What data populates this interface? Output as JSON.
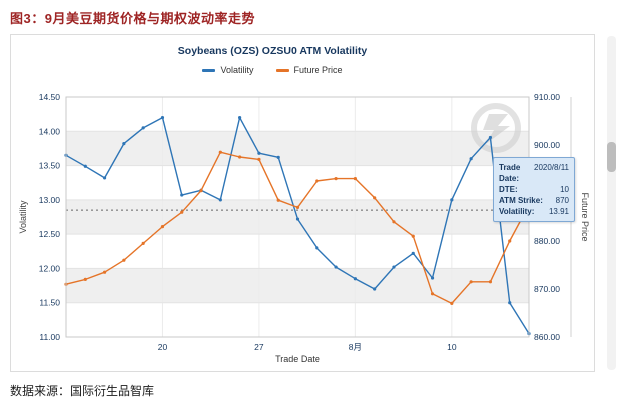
{
  "page": {
    "title": "图3：9月美豆期货价格与期权波动率走势",
    "source": "数据来源：国际衍生品智库"
  },
  "tooltip": {
    "rows": [
      {
        "label": "Trade Date:",
        "value": "2020/8/11"
      },
      {
        "label": "DTE:",
        "value": "10"
      },
      {
        "label": "ATM Strike:",
        "value": "870"
      },
      {
        "label": "Volatility:",
        "value": "13.91"
      }
    ]
  },
  "chart_data": {
    "type": "line",
    "title": "Soybeans (OZS) OZSU0 ATM Volatility",
    "x_label": "Trade Date",
    "x_ticks": [
      {
        "index": 5,
        "label": "20"
      },
      {
        "index": 10,
        "label": "27"
      },
      {
        "index": 15,
        "label": "8月"
      },
      {
        "index": 20,
        "label": "10"
      }
    ],
    "y_left": {
      "label": "Volatility",
      "min": 11.0,
      "max": 14.5,
      "tick_step": 0.5
    },
    "y_right": {
      "label": "Future Price",
      "min": 860,
      "max": 910,
      "tick_step": 10
    },
    "reference_line": {
      "axis": "left",
      "value": 12.85
    },
    "series": [
      {
        "name": "Volatility",
        "axis": "left",
        "color": "#2E75B6",
        "values": [
          13.65,
          13.49,
          13.32,
          13.82,
          14.05,
          14.2,
          13.07,
          13.14,
          13.0,
          14.2,
          13.68,
          13.62,
          12.72,
          12.3,
          12.02,
          11.85,
          11.7,
          12.02,
          12.22,
          11.86,
          13.0,
          13.6,
          13.91,
          11.5,
          11.05
        ]
      },
      {
        "name": "Future Price",
        "axis": "right",
        "color": "#E57428",
        "values": [
          871,
          872,
          873.5,
          876,
          879.5,
          883,
          886,
          890.5,
          898.5,
          897.5,
          897,
          888.5,
          887,
          892.5,
          893,
          893,
          889,
          884,
          881,
          869,
          867,
          871.5,
          871.5,
          880,
          887.5
        ]
      }
    ]
  }
}
